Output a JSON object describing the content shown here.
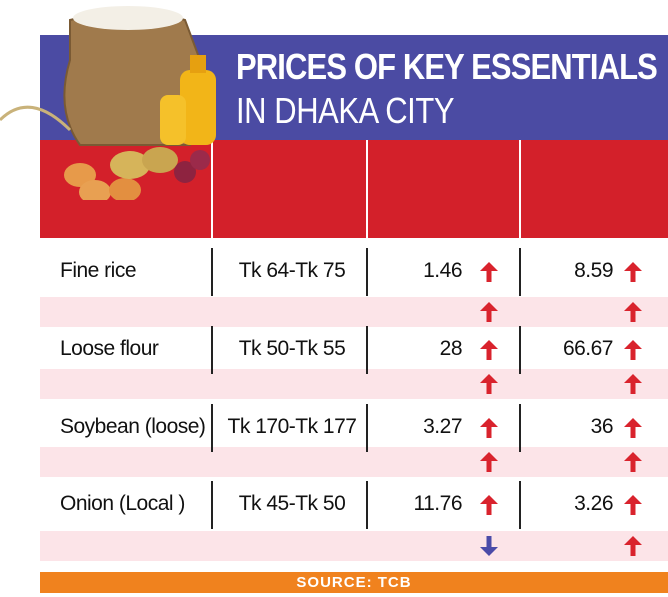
{
  "header": {
    "title_line1": "PRICES OF KEY ESSENTIALS",
    "title_line2": "IN DHAKA CITY"
  },
  "table": {
    "rows": [
      {
        "item": "Fine rice",
        "price_range": "Tk 64-Tk 75",
        "change_1": 1.46,
        "change_2": 8.59,
        "trend": [
          "up",
          "up"
        ],
        "sub_trend": [
          "up",
          "up"
        ]
      },
      {
        "item": "Loose flour",
        "price_range": "Tk 50-Tk 55",
        "change_1": 28,
        "change_2": 66.67,
        "trend": [
          "up",
          "up"
        ],
        "sub_trend": [
          "up",
          "up"
        ]
      },
      {
        "item": "Soybean (loose)",
        "price_range": "Tk 170-Tk 177",
        "change_1": 3.27,
        "change_2": 36,
        "trend": [
          "up",
          "up"
        ],
        "sub_trend": [
          "up",
          "up"
        ]
      },
      {
        "item": "Onion (Local )",
        "price_range": "Tk 45-Tk 50",
        "change_1": 11.76,
        "change_2": 3.26,
        "trend": [
          "up",
          "up"
        ],
        "sub_trend": [
          "down",
          "up"
        ]
      }
    ]
  },
  "footer": {
    "source": "SOURCE: TCB"
  }
}
